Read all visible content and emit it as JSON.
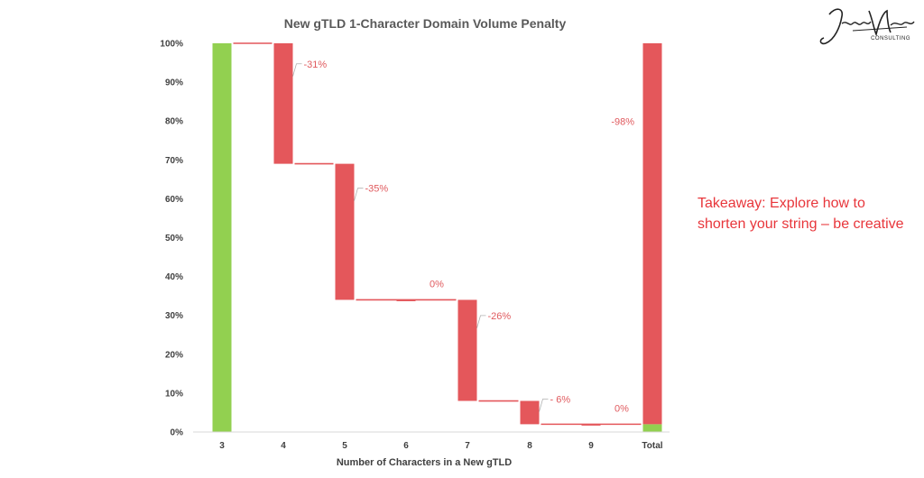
{
  "chart_data": {
    "type": "waterfall",
    "title": "New gTLD 1-Character Domain Volume Penalty",
    "xlabel": "Number of Characters in a New gTLD",
    "ylabel": "",
    "ylim": [
      0,
      100
    ],
    "y_ticks": [
      "0%",
      "10%",
      "20%",
      "30%",
      "40%",
      "50%",
      "60%",
      "70%",
      "80%",
      "90%",
      "100%"
    ],
    "categories": [
      "3",
      "4",
      "5",
      "6",
      "7",
      "8",
      "9",
      "Total"
    ],
    "bars": [
      {
        "category": "3",
        "kind": "start",
        "from": 0,
        "to": 100,
        "label": ""
      },
      {
        "category": "4",
        "kind": "decrease",
        "from": 100,
        "to": 69,
        "label": "-31%"
      },
      {
        "category": "5",
        "kind": "decrease",
        "from": 69,
        "to": 34,
        "label": "-35%"
      },
      {
        "category": "6",
        "kind": "decrease",
        "from": 34,
        "to": 34,
        "label": "0%"
      },
      {
        "category": "7",
        "kind": "decrease",
        "from": 34,
        "to": 8,
        "label": "-26%"
      },
      {
        "category": "8",
        "kind": "decrease",
        "from": 8,
        "to": 2,
        "label": "- 6%"
      },
      {
        "category": "9",
        "kind": "decrease",
        "from": 2,
        "to": 2,
        "label": "0%"
      },
      {
        "category": "Total",
        "kind": "total",
        "remaining": 2,
        "lost": 98,
        "label": "-98%"
      }
    ],
    "colors": {
      "increase": "#92d050",
      "decrease": "#e4575b"
    },
    "grid": false
  },
  "takeaway": "Takeaway:  Explore how to shorten your string – be creative",
  "logo": {
    "name": "John Matson",
    "sub": "CONSULTING"
  }
}
